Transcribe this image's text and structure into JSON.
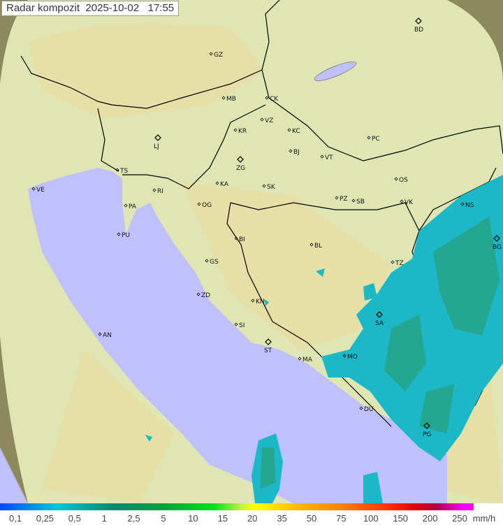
{
  "title": "Radar kompozit  2025-10-02   17:55",
  "cities": [
    "GZ",
    "BD",
    "MB",
    "CK",
    "VZ",
    "KR",
    "KC",
    "PC",
    "LJ",
    "ZG",
    "BJ",
    "VT",
    "TS",
    "VE",
    "OS",
    "RI",
    "KA",
    "SK",
    "PZ",
    "SB",
    "PA",
    "OG",
    "VK",
    "NS",
    "PU",
    "BI",
    "BL",
    "BG",
    "GS",
    "TZ",
    "ZD",
    "KN",
    "SA",
    "SI",
    "AN",
    "ST",
    "MA",
    "MO",
    "DU",
    "PG"
  ],
  "legend": {
    "labels": [
      "0,1",
      "0,25",
      "0,5",
      "1",
      "2,5",
      "5",
      "10",
      "15",
      "20",
      "35",
      "50",
      "75",
      "100",
      "150",
      "200",
      "250"
    ],
    "unit": "mm/h"
  },
  "colors": {
    "sea": "#c0c0ff",
    "land": "#dfe6b4",
    "outside": "#8c8a5c",
    "rain_light": "#1cb8c8",
    "rain_heavy": "#2a9a6a"
  }
}
